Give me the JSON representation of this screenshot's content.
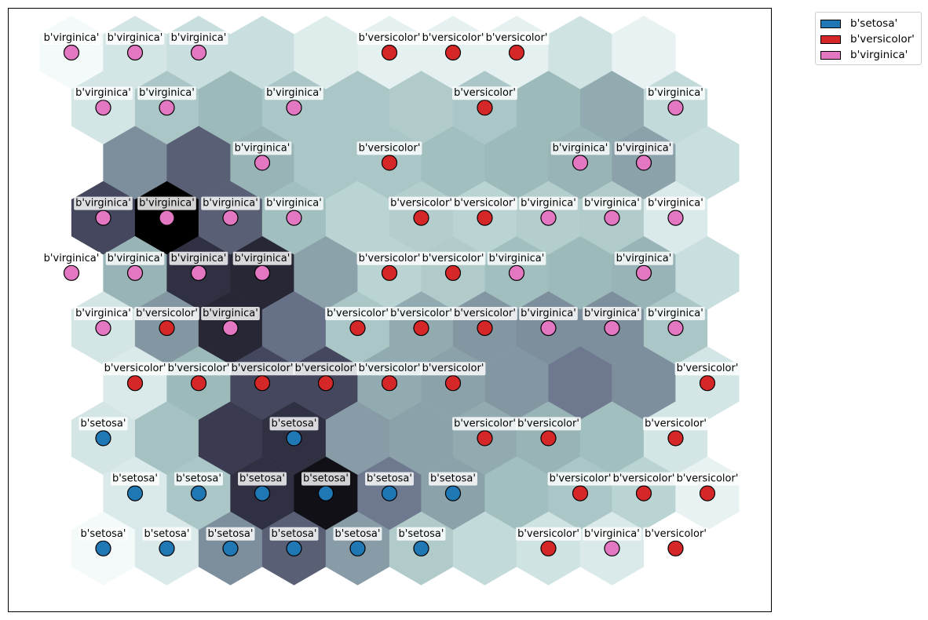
{
  "chart_data": {
    "type": "heatmap",
    "subtype": "hexagonal self-organizing map (U-matrix) with class markers",
    "grid": {
      "rows": 10,
      "cols": 11,
      "hex_orientation": "pointy-top",
      "odd_rows_offset": "right"
    },
    "colormap": "bone_r",
    "axes": {
      "ticks": "none",
      "frame": true
    },
    "legend": {
      "placement": "outside top-right",
      "entries": [
        {
          "label": "b'setosa'",
          "color": "#1f77b4"
        },
        {
          "label": "b'versicolor'",
          "color": "#d62728"
        },
        {
          "label": "b'virginica'",
          "color": "#e377c2"
        }
      ]
    },
    "cells_note": "rows listed from top row (0) to bottom row (9); each value is the distance level from 0 (lightest) to 1 (darkest)",
    "distances": [
      [
        0.05,
        0.2,
        0.25,
        0.25,
        0.15,
        0.12,
        0.12,
        0.12,
        0.22,
        0.1,
        null
      ],
      [
        0.2,
        0.35,
        0.4,
        0.35,
        0.35,
        0.33,
        0.35,
        0.4,
        0.45,
        0.27,
        null
      ],
      [
        null,
        0.55,
        0.7,
        0.42,
        0.35,
        0.35,
        0.38,
        0.4,
        0.42,
        0.48,
        0.25
      ],
      [
        0.78,
        1.0,
        0.7,
        0.38,
        0.3,
        0.32,
        0.3,
        0.32,
        0.33,
        0.17,
        null
      ],
      [
        null,
        0.42,
        0.85,
        0.88,
        0.48,
        0.3,
        0.33,
        0.38,
        0.4,
        0.42,
        0.25
      ],
      [
        0.2,
        0.52,
        0.88,
        0.65,
        0.35,
        0.45,
        0.52,
        0.55,
        0.55,
        0.35,
        null
      ],
      [
        null,
        0.17,
        0.4,
        0.78,
        0.78,
        0.45,
        0.48,
        0.52,
        0.62,
        0.55,
        0.2
      ],
      [
        0.2,
        0.37,
        0.82,
        0.85,
        0.5,
        0.48,
        0.45,
        0.42,
        0.38,
        0.2,
        null
      ],
      [
        null,
        0.17,
        0.35,
        0.85,
        0.95,
        0.62,
        0.48,
        0.38,
        0.35,
        0.3,
        0.1
      ],
      [
        0.05,
        0.17,
        0.55,
        0.7,
        0.5,
        0.33,
        0.27,
        0.22,
        0.17,
        null,
        null
      ]
    ],
    "nodes": [
      {
        "row": 0,
        "col": 0,
        "label": "b'virginica'"
      },
      {
        "row": 0,
        "col": 1,
        "label": "b'virginica'"
      },
      {
        "row": 0,
        "col": 2,
        "label": "b'virginica'"
      },
      {
        "row": 0,
        "col": 5,
        "label": "b'versicolor'"
      },
      {
        "row": 0,
        "col": 6,
        "label": "b'versicolor'"
      },
      {
        "row": 0,
        "col": 7,
        "label": "b'versicolor'"
      },
      {
        "row": 1,
        "col": 0,
        "label": "b'virginica'"
      },
      {
        "row": 1,
        "col": 1,
        "label": "b'virginica'"
      },
      {
        "row": 1,
        "col": 3,
        "label": "b'virginica'"
      },
      {
        "row": 1,
        "col": 6,
        "label": "b'versicolor'"
      },
      {
        "row": 1,
        "col": 9,
        "label": "b'virginica'"
      },
      {
        "row": 2,
        "col": 3,
        "label": "b'virginica'"
      },
      {
        "row": 2,
        "col": 5,
        "label": "b'versicolor'"
      },
      {
        "row": 2,
        "col": 8,
        "label": "b'virginica'"
      },
      {
        "row": 2,
        "col": 9,
        "label": "b'virginica'"
      },
      {
        "row": 3,
        "col": 0,
        "label": "b'virginica'"
      },
      {
        "row": 3,
        "col": 1,
        "label": "b'virginica'"
      },
      {
        "row": 3,
        "col": 2,
        "label": "b'virginica'"
      },
      {
        "row": 3,
        "col": 3,
        "label": "b'virginica'"
      },
      {
        "row": 3,
        "col": 5,
        "label": "b'versicolor'"
      },
      {
        "row": 3,
        "col": 6,
        "label": "b'versicolor'"
      },
      {
        "row": 3,
        "col": 7,
        "label": "b'virginica'"
      },
      {
        "row": 3,
        "col": 8,
        "label": "b'virginica'"
      },
      {
        "row": 3,
        "col": 9,
        "label": "b'virginica'"
      },
      {
        "row": 4,
        "col": 0,
        "label": "b'virginica'"
      },
      {
        "row": 4,
        "col": 1,
        "label": "b'virginica'"
      },
      {
        "row": 4,
        "col": 2,
        "label": "b'virginica'"
      },
      {
        "row": 4,
        "col": 3,
        "label": "b'virginica'"
      },
      {
        "row": 4,
        "col": 5,
        "label": "b'versicolor'"
      },
      {
        "row": 4,
        "col": 6,
        "label": "b'versicolor'"
      },
      {
        "row": 4,
        "col": 7,
        "label": "b'virginica'"
      },
      {
        "row": 4,
        "col": 9,
        "label": "b'virginica'"
      },
      {
        "row": 5,
        "col": 0,
        "label": "b'virginica'"
      },
      {
        "row": 5,
        "col": 1,
        "label": "b'versicolor'"
      },
      {
        "row": 5,
        "col": 2,
        "label": "b'virginica'"
      },
      {
        "row": 5,
        "col": 4,
        "label": "b'versicolor'"
      },
      {
        "row": 5,
        "col": 5,
        "label": "b'versicolor'"
      },
      {
        "row": 5,
        "col": 6,
        "label": "b'versicolor'"
      },
      {
        "row": 5,
        "col": 7,
        "label": "b'virginica'"
      },
      {
        "row": 5,
        "col": 8,
        "label": "b'virginica'"
      },
      {
        "row": 5,
        "col": 9,
        "label": "b'virginica'"
      },
      {
        "row": 6,
        "col": 1,
        "label": "b'versicolor'"
      },
      {
        "row": 6,
        "col": 2,
        "label": "b'versicolor'"
      },
      {
        "row": 6,
        "col": 3,
        "label": "b'versicolor'"
      },
      {
        "row": 6,
        "col": 4,
        "label": "b'versicolor'"
      },
      {
        "row": 6,
        "col": 5,
        "label": "b'versicolor'"
      },
      {
        "row": 6,
        "col": 6,
        "label": "b'versicolor'"
      },
      {
        "row": 6,
        "col": 10,
        "label": "b'versicolor'"
      },
      {
        "row": 7,
        "col": 0,
        "label": "b'setosa'"
      },
      {
        "row": 7,
        "col": 3,
        "label": "b'setosa'"
      },
      {
        "row": 7,
        "col": 6,
        "label": "b'versicolor'"
      },
      {
        "row": 7,
        "col": 7,
        "label": "b'versicolor'"
      },
      {
        "row": 7,
        "col": 9,
        "label": "b'versicolor'"
      },
      {
        "row": 8,
        "col": 1,
        "label": "b'setosa'"
      },
      {
        "row": 8,
        "col": 2,
        "label": "b'setosa'"
      },
      {
        "row": 8,
        "col": 3,
        "label": "b'setosa'"
      },
      {
        "row": 8,
        "col": 4,
        "label": "b'setosa'"
      },
      {
        "row": 8,
        "col": 5,
        "label": "b'setosa'"
      },
      {
        "row": 8,
        "col": 6,
        "label": "b'setosa'"
      },
      {
        "row": 8,
        "col": 8,
        "label": "b'versicolor'"
      },
      {
        "row": 8,
        "col": 9,
        "label": "b'versicolor'"
      },
      {
        "row": 8,
        "col": 10,
        "label": "b'versicolor'"
      },
      {
        "row": 9,
        "col": 0,
        "label": "b'setosa'"
      },
      {
        "row": 9,
        "col": 1,
        "label": "b'setosa'"
      },
      {
        "row": 9,
        "col": 2,
        "label": "b'setosa'"
      },
      {
        "row": 9,
        "col": 3,
        "label": "b'setosa'"
      },
      {
        "row": 9,
        "col": 4,
        "label": "b'setosa'"
      },
      {
        "row": 9,
        "col": 5,
        "label": "b'setosa'"
      },
      {
        "row": 9,
        "col": 7,
        "label": "b'versicolor'"
      },
      {
        "row": 9,
        "col": 8,
        "label": "b'virginica'"
      },
      {
        "row": 9,
        "col": 9,
        "label": "b'versicolor'"
      }
    ]
  }
}
